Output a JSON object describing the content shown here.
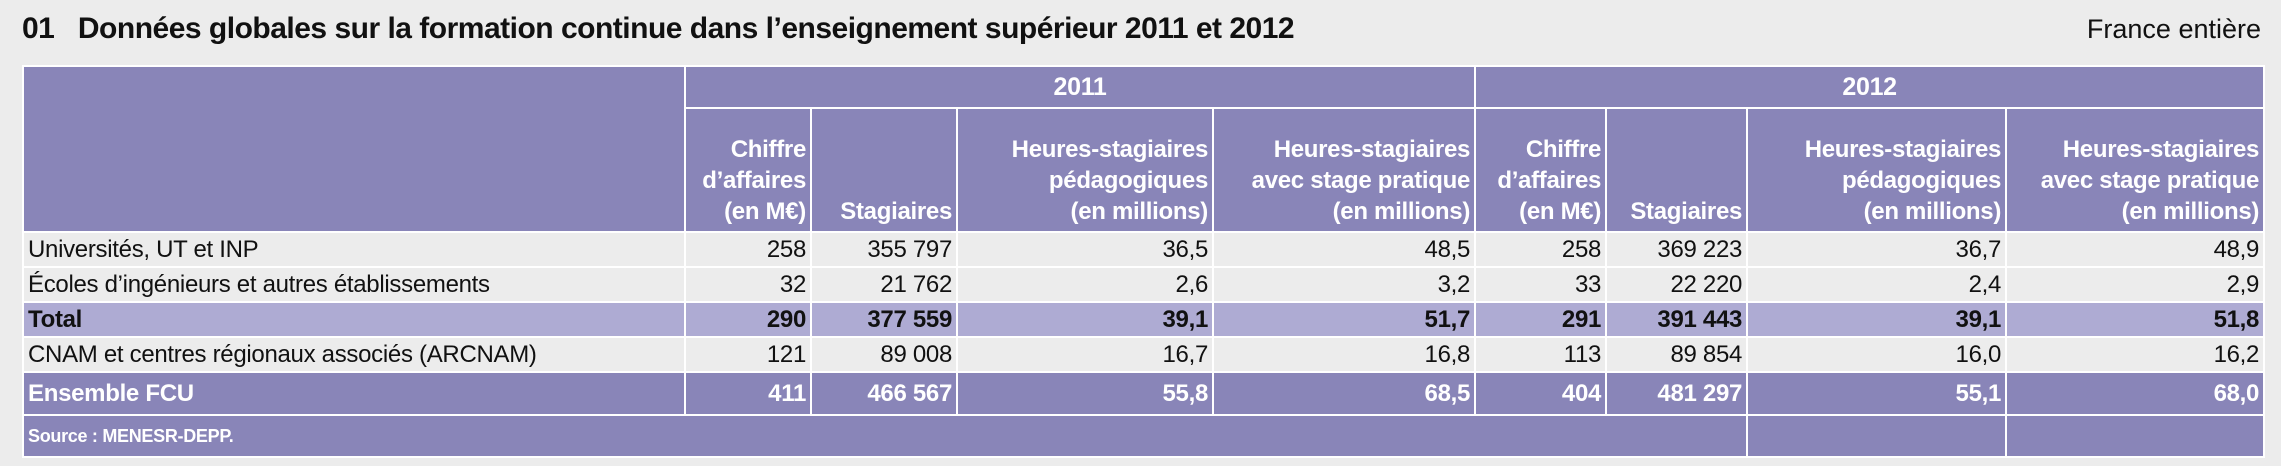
{
  "header": {
    "title": "01   Données globales sur la formation continue dans l’enseignement supérieur 2011 et 2012",
    "region": "France entière"
  },
  "table": {
    "years": [
      "2011",
      "2012"
    ],
    "columns": [
      "Chiffre\nd’affaires\n(en M€)",
      "Stagiaires",
      "Heures-stagiaires\npédagogiques\n(en millions)",
      "Heures-stagiaires\navec stage pratique\n(en millions)",
      "Chiffre\nd’affaires\n(en M€)",
      "Stagiaires",
      "Heures-stagiaires\npédagogiques\n(en millions)",
      "Heures-stagiaires\navec stage pratique\n(en millions)"
    ],
    "rows": [
      [
        "Universités, UT et INP",
        "258",
        "355 797",
        "36,5",
        "48,5",
        "258",
        "369 223",
        "36,7",
        "48,9"
      ],
      [
        "Écoles d’ingénieurs et autres établissements",
        "32",
        "21 762",
        "2,6",
        "3,2",
        "33",
        "22 220",
        "2,4",
        "2,9"
      ],
      [
        "Total",
        "290",
        "377 559",
        "39,1",
        "51,7",
        "291",
        "391 443",
        "39,1",
        "51,8"
      ],
      [
        "CNAM et centres régionaux associés (ARCNAM)",
        "121",
        "89 008",
        "16,7",
        "16,8",
        "113",
        "89 854",
        "16,0",
        "16,2"
      ],
      [
        "Ensemble FCU",
        "411",
        "466 567",
        "55,8",
        "68,5",
        "404",
        "481 297",
        "55,1",
        "68,0"
      ]
    ],
    "source": "Source : MENESR-DEPP."
  }
}
